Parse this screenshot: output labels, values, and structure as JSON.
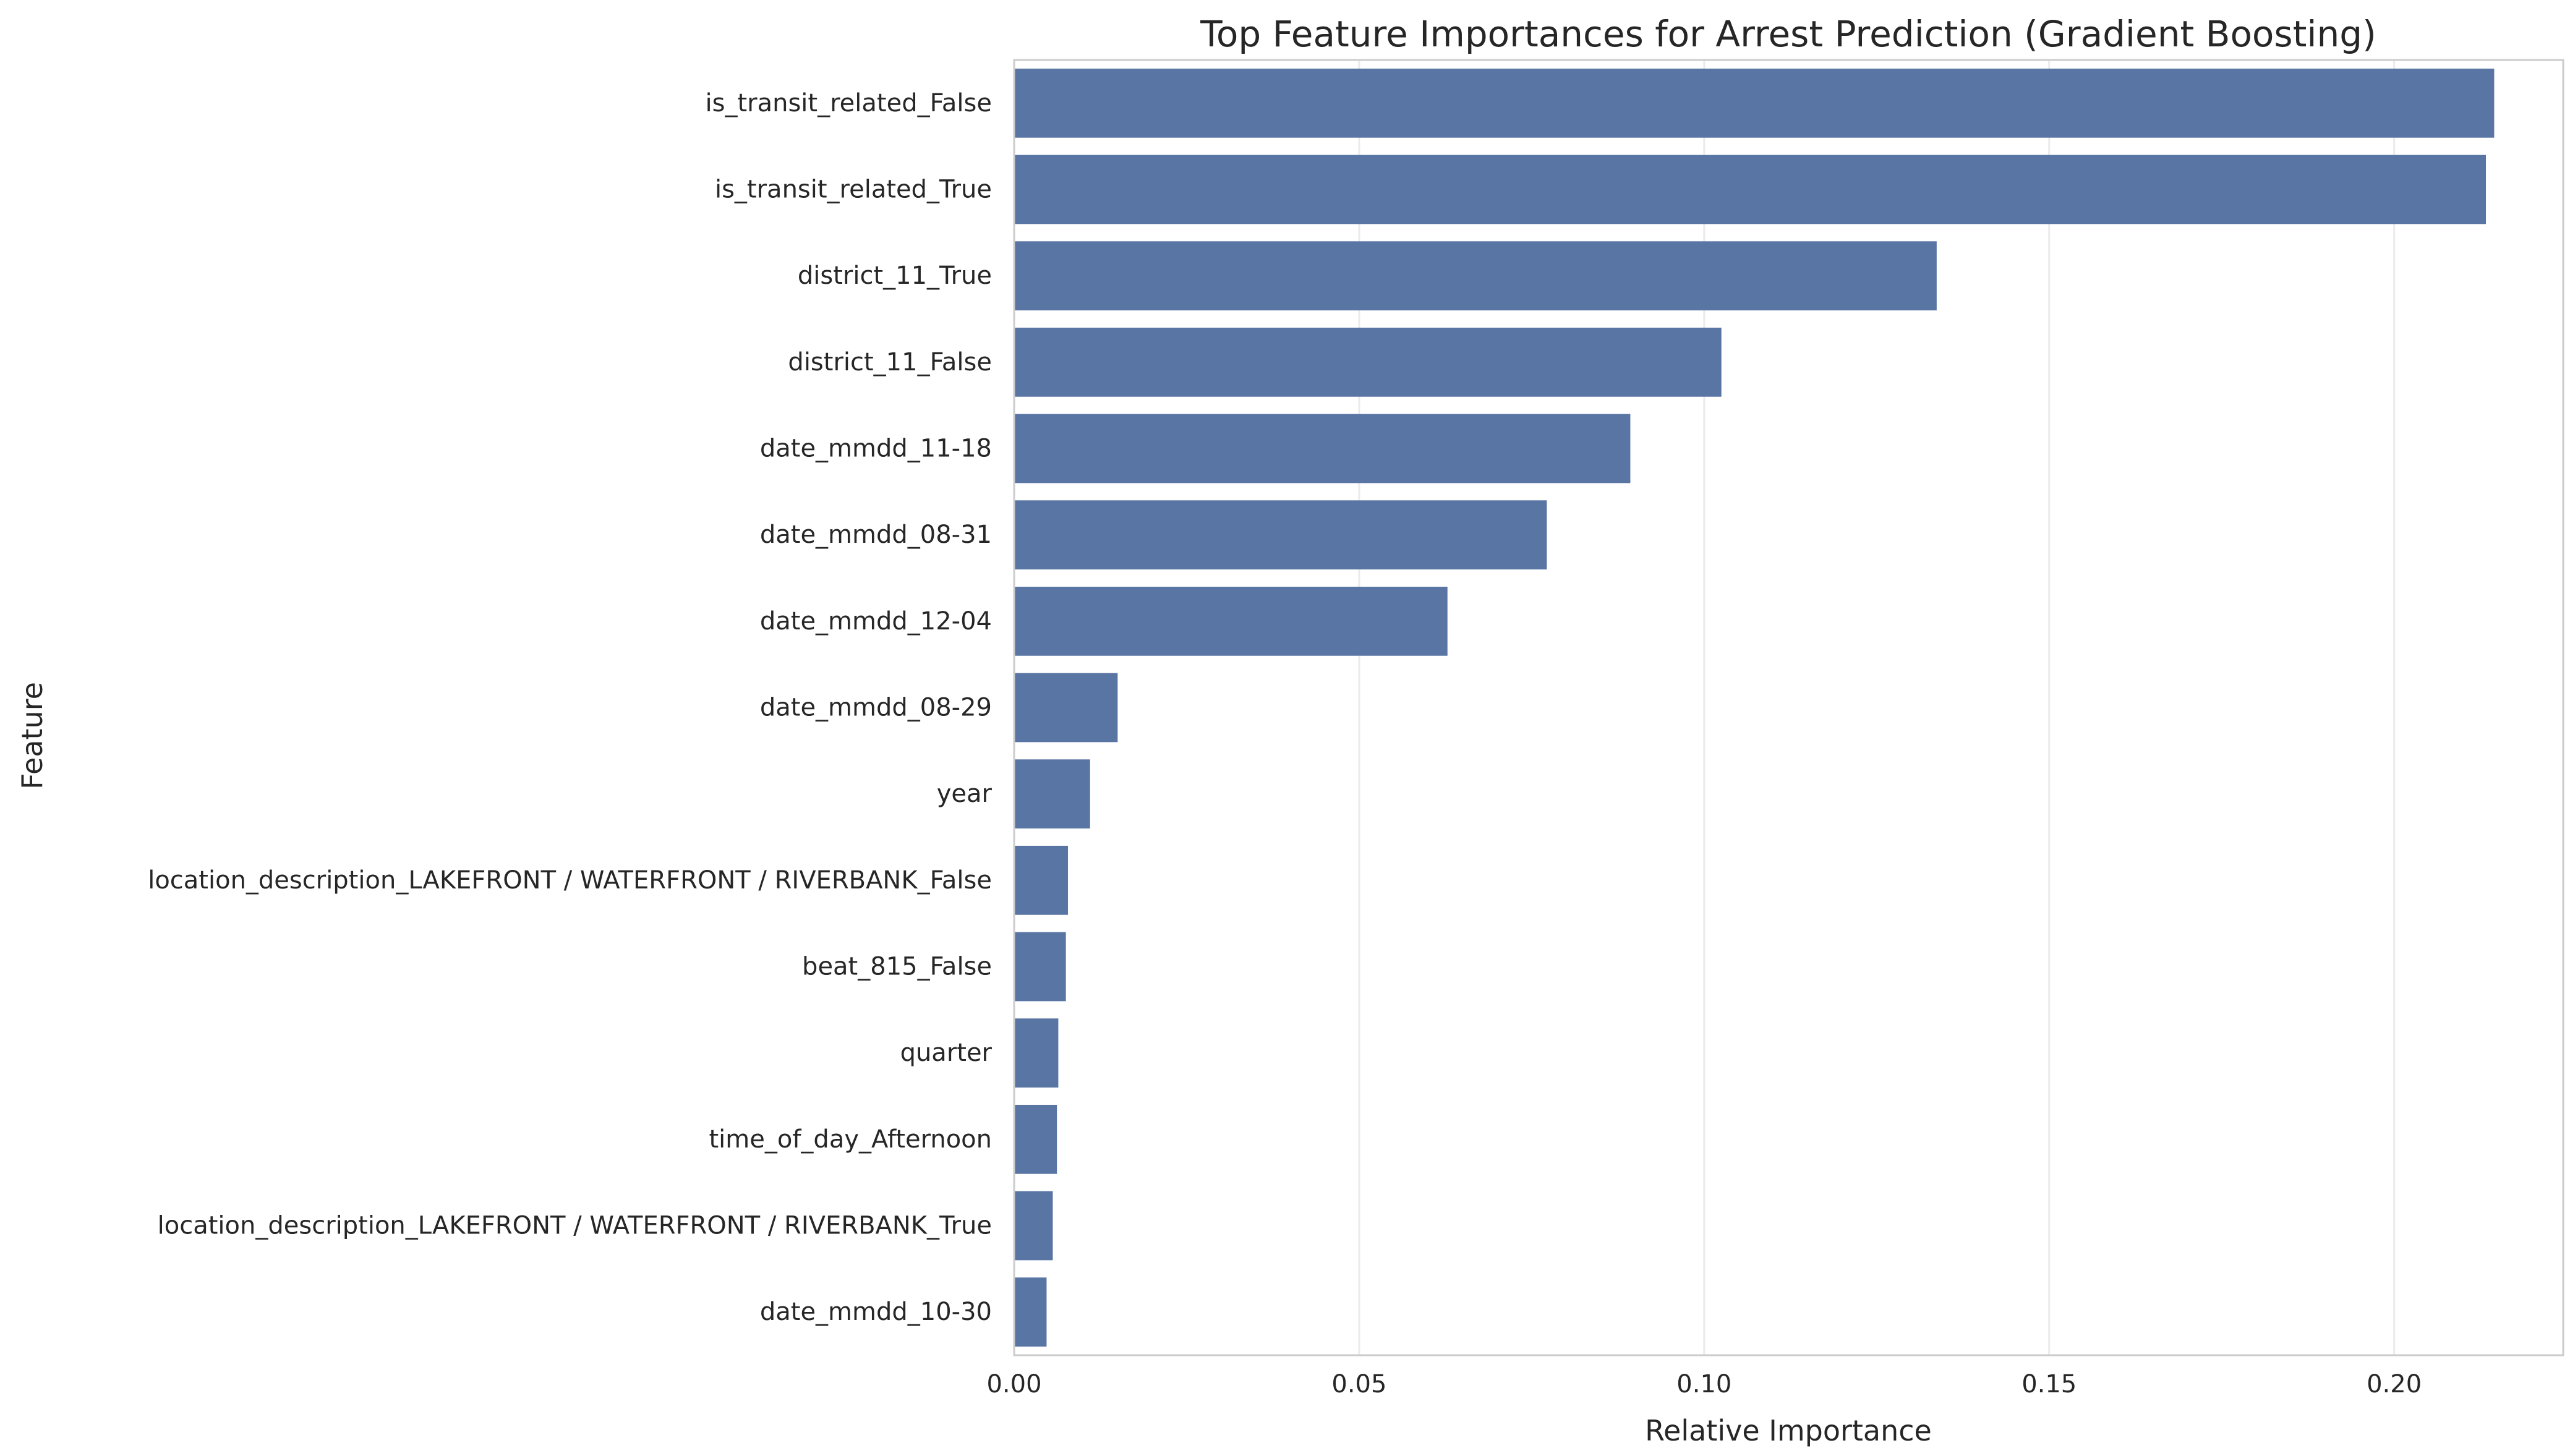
{
  "chart_data": {
    "type": "bar",
    "orientation": "horizontal",
    "title": "Top Feature Importances for Arrest Prediction (Gradient Boosting)",
    "xlabel": "Relative Importance",
    "ylabel": "Feature",
    "xlim": [
      0,
      0.2245
    ],
    "xticks": [
      0.0,
      0.05,
      0.1,
      0.15,
      0.2
    ],
    "xtick_labels": [
      "0.00",
      "0.05",
      "0.10",
      "0.15",
      "0.20"
    ],
    "grid": "vertical",
    "bar_color": "#5975a4",
    "categories": [
      "is_transit_related_False",
      "is_transit_related_True",
      "district_11_True",
      "district_11_False",
      "date_mmdd_11-18",
      "date_mmdd_08-31",
      "date_mmdd_12-04",
      "date_mmdd_08-29",
      "year",
      "location_description_LAKEFRONT / WATERFRONT / RIVERBANK_False",
      "beat_815_False",
      "quarter",
      "time_of_day_Afternoon",
      "location_description_LAKEFRONT / WATERFRONT / RIVERBANK_True",
      "date_mmdd_10-30"
    ],
    "values": [
      0.2145,
      0.2133,
      0.1337,
      0.1025,
      0.0893,
      0.0772,
      0.0628,
      0.015,
      0.011,
      0.0078,
      0.0075,
      0.0064,
      0.0062,
      0.0056,
      0.0047
    ]
  }
}
